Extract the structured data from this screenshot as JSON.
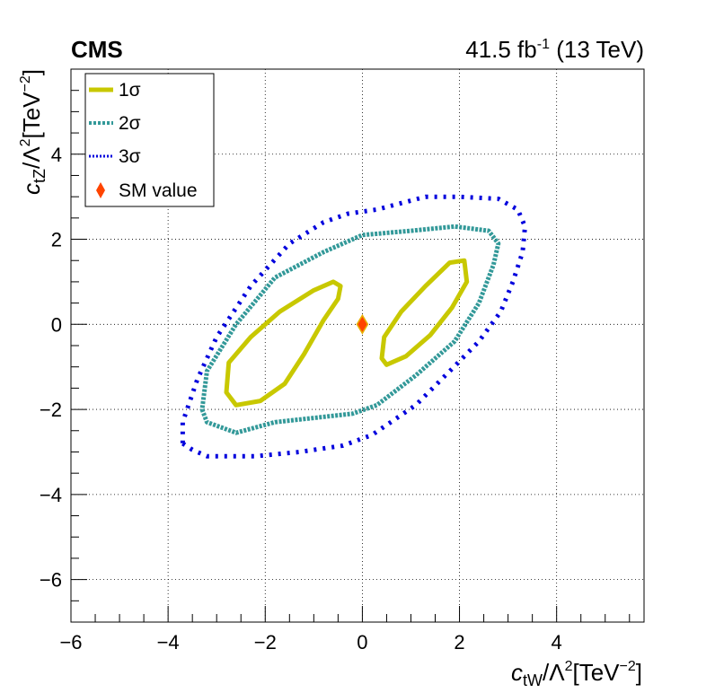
{
  "header": {
    "experiment": "CMS",
    "lumi_value": "41.5 fb",
    "lumi_exp": "-1",
    "energy": " (13 TeV)"
  },
  "axes": {
    "xlabel": {
      "symbol": "c",
      "sub": "tW",
      "mid": "/Λ",
      "sup1": "2",
      "unit": "[TeV",
      "sup2": "−2",
      "close": "]"
    },
    "ylabel": {
      "symbol": "c",
      "sub": "tZ",
      "mid": "/Λ",
      "sup1": "2",
      "unit": "[TeV",
      "sup2": "−2",
      "close": "]"
    }
  },
  "legend": {
    "items": [
      {
        "label": "1σ",
        "color": "#c8c800",
        "style": "solid"
      },
      {
        "label": "2σ",
        "color": "#339999",
        "style": "dotted"
      },
      {
        "label": "3σ",
        "color": "#0000dd",
        "style": "fine-dotted"
      },
      {
        "label": "SM value",
        "color": "#ff4400",
        "style": "marker"
      }
    ]
  },
  "chart_data": {
    "type": "scatter",
    "xlim": [
      -6,
      5.8
    ],
    "ylim": [
      -7,
      6
    ],
    "x_ticks": [
      -6,
      -4,
      -2,
      0,
      2,
      4
    ],
    "x_tick_labels": [
      "−6",
      "−4",
      "−2",
      "0",
      "2",
      "4"
    ],
    "y_ticks": [
      -6,
      -4,
      -2,
      0,
      2,
      4
    ],
    "y_tick_labels": [
      "−6",
      "−4",
      "−2",
      "0",
      "2",
      "4"
    ],
    "grid": true,
    "legend_position": "top-left",
    "sm_point": {
      "x": 0,
      "y": 0
    },
    "series": [
      {
        "name": "1σ",
        "color": "#c8c800",
        "contours": [
          [
            [
              -2.6,
              -1.9
            ],
            [
              -2.1,
              -1.8
            ],
            [
              -1.6,
              -1.4
            ],
            [
              -1.2,
              -0.7
            ],
            [
              -0.8,
              0.1
            ],
            [
              -0.5,
              0.6
            ],
            [
              -0.45,
              0.9
            ],
            [
              -0.6,
              1.0
            ],
            [
              -1.0,
              0.8
            ],
            [
              -1.7,
              0.3
            ],
            [
              -2.3,
              -0.3
            ],
            [
              -2.75,
              -0.9
            ],
            [
              -2.8,
              -1.6
            ],
            [
              -2.6,
              -1.9
            ]
          ],
          [
            [
              0.5,
              -0.95
            ],
            [
              0.9,
              -0.75
            ],
            [
              1.4,
              -0.25
            ],
            [
              1.85,
              0.4
            ],
            [
              2.15,
              1.0
            ],
            [
              2.1,
              1.5
            ],
            [
              1.8,
              1.45
            ],
            [
              1.3,
              0.9
            ],
            [
              0.8,
              0.3
            ],
            [
              0.45,
              -0.3
            ],
            [
              0.4,
              -0.8
            ],
            [
              0.5,
              -0.95
            ]
          ]
        ]
      },
      {
        "name": "2σ",
        "color": "#339999",
        "contours": [
          [
            [
              -3.3,
              -2.0
            ],
            [
              -3.2,
              -2.3
            ],
            [
              -2.6,
              -2.55
            ],
            [
              -1.8,
              -2.3
            ],
            [
              -1.0,
              -2.2
            ],
            [
              -0.2,
              -2.1
            ],
            [
              0.3,
              -1.9
            ],
            [
              1.1,
              -1.2
            ],
            [
              1.9,
              -0.4
            ],
            [
              2.4,
              0.5
            ],
            [
              2.7,
              1.4
            ],
            [
              2.8,
              1.9
            ],
            [
              2.6,
              2.2
            ],
            [
              1.9,
              2.3
            ],
            [
              1.0,
              2.2
            ],
            [
              0.0,
              2.1
            ],
            [
              -0.8,
              1.7
            ],
            [
              -1.8,
              1.1
            ],
            [
              -2.6,
              0.0
            ],
            [
              -3.2,
              -1.1
            ],
            [
              -3.3,
              -2.0
            ]
          ]
        ]
      },
      {
        "name": "3σ",
        "color": "#0000dd",
        "contours": [
          [
            [
              -3.7,
              -2.8
            ],
            [
              -3.5,
              -2.95
            ],
            [
              -3.2,
              -3.1
            ],
            [
              -2.2,
              -3.1
            ],
            [
              -1.3,
              -3.0
            ],
            [
              -0.4,
              -2.85
            ],
            [
              0.2,
              -2.6
            ],
            [
              1.1,
              -1.9
            ],
            [
              1.8,
              -1.1
            ],
            [
              2.4,
              -0.4
            ],
            [
              2.85,
              0.3
            ],
            [
              3.1,
              1.0
            ],
            [
              3.3,
              1.7
            ],
            [
              3.35,
              2.3
            ],
            [
              3.2,
              2.7
            ],
            [
              2.8,
              2.95
            ],
            [
              2.0,
              3.0
            ],
            [
              1.3,
              3.0
            ],
            [
              0.8,
              2.85
            ],
            [
              0.3,
              2.7
            ],
            [
              -0.3,
              2.6
            ],
            [
              -0.8,
              2.4
            ],
            [
              -1.5,
              1.9
            ],
            [
              -2.3,
              0.9
            ],
            [
              -3.0,
              -0.3
            ],
            [
              -3.4,
              -1.3
            ],
            [
              -3.7,
              -2.3
            ],
            [
              -3.7,
              -2.8
            ]
          ]
        ]
      }
    ]
  }
}
